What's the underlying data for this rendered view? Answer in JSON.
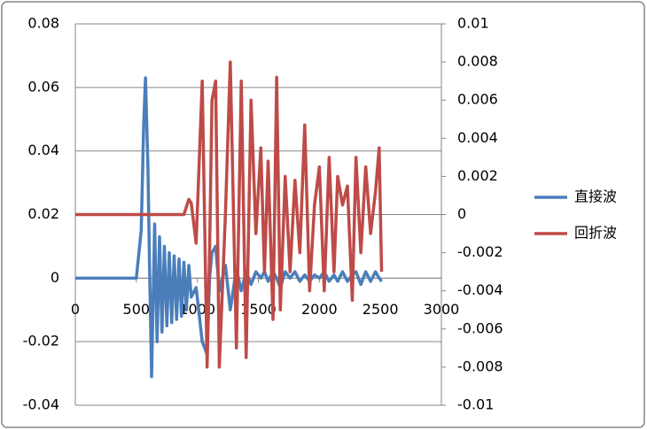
{
  "chart_data": {
    "type": "line",
    "x": [
      0,
      500,
      540,
      560,
      575,
      595,
      610,
      625,
      650,
      670,
      690,
      710,
      730,
      750,
      770,
      790,
      810,
      830,
      850,
      870,
      890,
      910,
      930,
      950,
      990,
      1040,
      1080,
      1100,
      1120,
      1150,
      1180,
      1230,
      1270,
      1320,
      1360,
      1400,
      1440,
      1480,
      1520,
      1550,
      1580,
      1620,
      1650,
      1680,
      1720,
      1760,
      1800,
      1840,
      1880,
      1920,
      1960,
      2000,
      2040,
      2080,
      2120,
      2150,
      2190,
      2230,
      2270,
      2300,
      2340,
      2380,
      2420,
      2460,
      2490,
      2510
    ],
    "series": [
      {
        "name": "直接波",
        "color": "#4a7ebb",
        "values": [
          0,
          0,
          0.015,
          0.048,
          0.063,
          0.035,
          0,
          -0.031,
          0.017,
          -0.02,
          0.013,
          -0.017,
          0.01,
          -0.015,
          0.008,
          -0.014,
          0.007,
          -0.013,
          0.006,
          -0.012,
          0.005,
          -0.01,
          0.004,
          -0.006,
          -0.003,
          -0.02,
          -0.024,
          0,
          0.008,
          0.01,
          -0.004,
          0.004,
          -0.01,
          0.003,
          -0.004,
          0.002,
          -0.002,
          0.002,
          0,
          0.002,
          -0.001,
          0.002,
          0,
          -0.003,
          0.002,
          0,
          0.002,
          -0.001,
          0.001,
          -0.001,
          0.001,
          0,
          0.002,
          -0.001,
          0.001,
          -0.001,
          0.002,
          -0.001,
          0.001,
          0.002,
          -0.002,
          0.002,
          -0.001,
          0.002,
          0,
          -0.001
        ]
      },
      {
        "name": "回折波",
        "color": "#be4b48",
        "axis": "y2",
        "values": [
          0,
          0,
          0,
          0,
          0,
          0,
          0,
          0,
          0,
          0,
          0,
          0,
          0,
          0,
          0,
          0,
          0,
          0,
          0,
          0,
          0,
          0.0004,
          0.0008,
          0.0006,
          -0.0015,
          0.007,
          -0.008,
          -0.002,
          0.006,
          0.007,
          -0.008,
          0,
          0.008,
          -0.007,
          0.007,
          -0.0075,
          0.006,
          -0.001,
          0.0035,
          -0.003,
          0.0028,
          -0.0055,
          0.0072,
          -0.005,
          0.002,
          -0.003,
          0.0018,
          -0.002,
          0.0047,
          -0.004,
          0.0005,
          0.0025,
          -0.004,
          0.003,
          -0.003,
          0.002,
          0.0005,
          0.0015,
          -0.0045,
          0.003,
          -0.002,
          0.0025,
          -0.001,
          0.0012,
          0.0035,
          -0.003
        ]
      }
    ],
    "xlim": [
      0,
      3000
    ],
    "xticks": [
      0,
      500,
      1000,
      1500,
      2000,
      2500,
      3000
    ],
    "ylim": [
      -0.04,
      0.08
    ],
    "yticks": [
      -0.04,
      -0.02,
      0,
      0.02,
      0.04,
      0.06,
      0.08
    ],
    "y2lim": [
      -0.01,
      0.01
    ],
    "y2ticks": [
      -0.01,
      -0.008,
      -0.006,
      -0.004,
      -0.002,
      0,
      0.002,
      0.004,
      0.006,
      0.008,
      0.01
    ],
    "grid": true,
    "legend": "right"
  }
}
